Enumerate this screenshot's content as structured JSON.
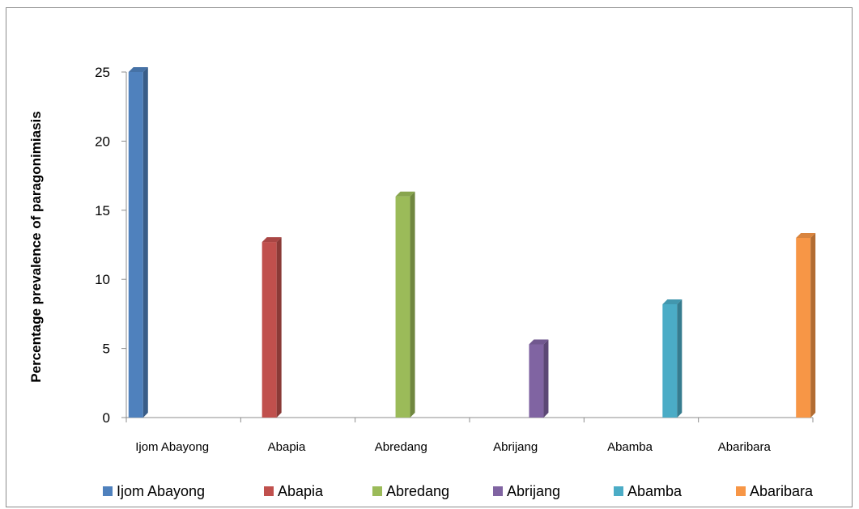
{
  "chart_data": {
    "type": "bar",
    "title": "",
    "xlabel": "",
    "ylabel": "Percentage prevalence of paragonimiasis",
    "ylim": [
      0,
      25
    ],
    "yticks": [
      0,
      5,
      10,
      15,
      20,
      25
    ],
    "categories": [
      "Ijom Abayong",
      "Abapia",
      "Abredang",
      "Abrijang",
      "Abamba",
      "Abaribara"
    ],
    "series": [
      {
        "name": "Ijom Abayong",
        "values": [
          25,
          null,
          null,
          null,
          null,
          null
        ],
        "color": "#4F81BD"
      },
      {
        "name": "Abapia",
        "values": [
          null,
          12.7,
          null,
          null,
          null,
          null
        ],
        "color": "#C0504D"
      },
      {
        "name": "Abredang",
        "values": [
          null,
          null,
          16,
          null,
          null,
          null
        ],
        "color": "#9BBB59"
      },
      {
        "name": "Abrijang",
        "values": [
          null,
          null,
          null,
          5.3,
          null,
          null
        ],
        "color": "#8064A2"
      },
      {
        "name": "Abamba",
        "values": [
          null,
          null,
          null,
          null,
          8.2,
          null
        ],
        "color": "#4BACC6"
      },
      {
        "name": "Abaribara",
        "values": [
          null,
          null,
          null,
          null,
          null,
          13
        ],
        "color": "#F79646"
      }
    ],
    "grid": false,
    "legend_position": "bottom"
  }
}
